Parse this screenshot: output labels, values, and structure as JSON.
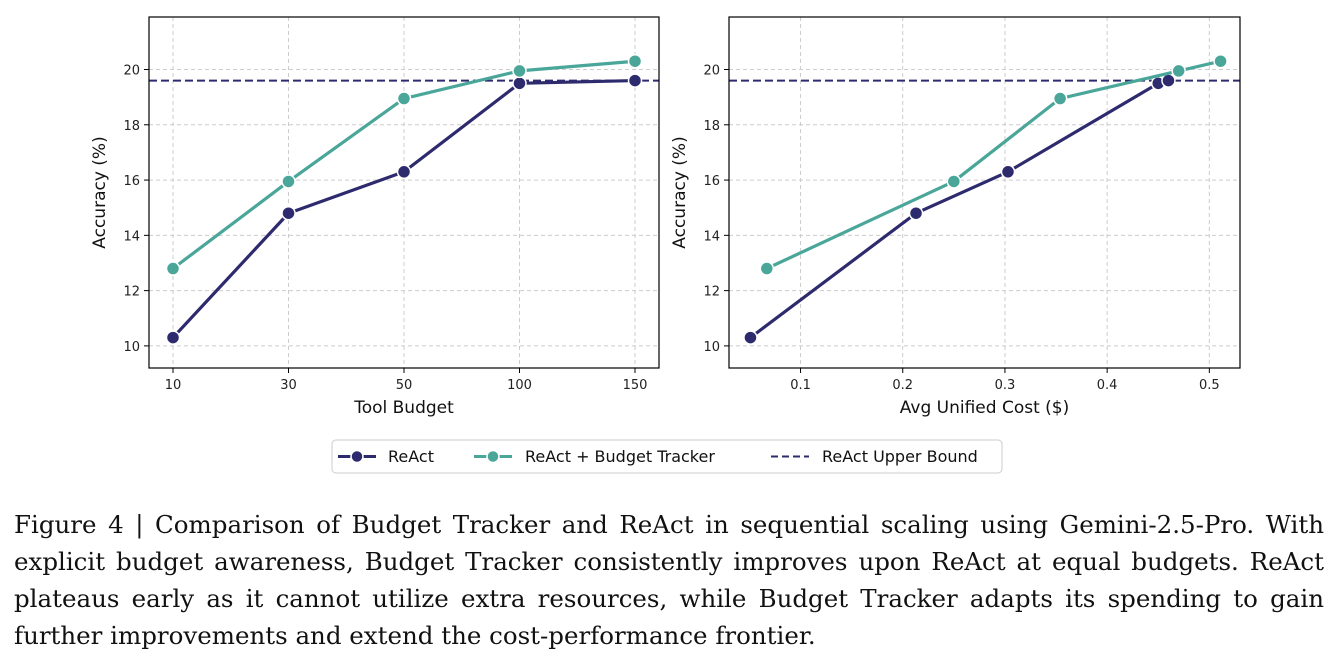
{
  "chart_data": [
    {
      "type": "line",
      "xlabel": "Tool Budget",
      "ylabel": "Accuracy (%)",
      "x_scale": "categorical",
      "categories": [
        "10",
        "30",
        "50",
        "100",
        "150"
      ],
      "ylim": [
        9.2,
        21.9
      ],
      "yticks": [
        10,
        12,
        14,
        16,
        18,
        20
      ],
      "grid": true,
      "series": [
        {
          "name": "ReAct",
          "values": [
            10.3,
            14.8,
            16.3,
            19.5,
            19.6
          ]
        },
        {
          "name": "ReAct + Budget Tracker",
          "values": [
            12.8,
            15.95,
            18.95,
            19.95,
            20.3
          ]
        }
      ],
      "hline": {
        "name": "ReAct Upper Bound",
        "value": 19.6
      }
    },
    {
      "type": "line",
      "xlabel": "Avg Unified Cost ($)",
      "ylabel": "Accuracy (%)",
      "xlim": [
        0.03,
        0.53
      ],
      "xticks": [
        "0.1",
        "0.2",
        "0.3",
        "0.4",
        "0.5"
      ],
      "ylim": [
        9.2,
        21.9
      ],
      "yticks": [
        10,
        12,
        14,
        16,
        18,
        20
      ],
      "grid": true,
      "series": [
        {
          "name": "ReAct",
          "points": [
            [
              0.051,
              10.3
            ],
            [
              0.213,
              14.8
            ],
            [
              0.303,
              16.3
            ],
            [
              0.45,
              19.5
            ],
            [
              0.46,
              19.6
            ]
          ]
        },
        {
          "name": "ReAct + Budget Tracker",
          "points": [
            [
              0.067,
              12.8
            ],
            [
              0.25,
              15.95
            ],
            [
              0.354,
              18.95
            ],
            [
              0.47,
              19.95
            ],
            [
              0.511,
              20.3
            ]
          ]
        }
      ],
      "hline": {
        "name": "ReAct Upper Bound",
        "value": 19.6
      }
    }
  ],
  "colors": {
    "react": "#2e2a6e",
    "tracker": "#4aa699",
    "upper": "#2e2a6e",
    "grid": "#cccccc"
  },
  "legend": {
    "placement": "bottom-center",
    "items": [
      "ReAct",
      "ReAct + Budget Tracker",
      "ReAct Upper Bound"
    ]
  },
  "caption": {
    "text": "Figure 4 | Comparison of Budget Tracker and ReAct in sequential scaling using Gemini-2.5-Pro. With explicit budget awareness, Budget Tracker consistently improves upon ReAct at equal budgets. ReAct plateaus early as it cannot utilize extra resources, while Budget Tracker adapts its spending to gain further improvements and extend the cost-performance frontier."
  }
}
